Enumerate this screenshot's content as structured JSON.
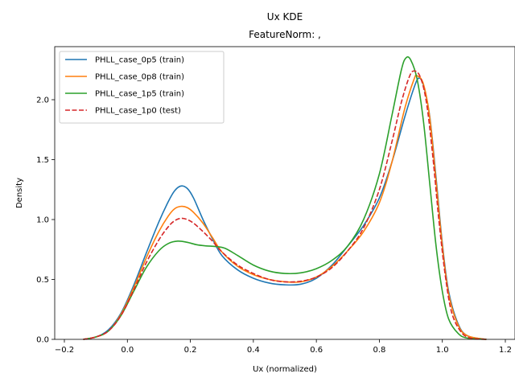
{
  "chart_data": {
    "type": "line",
    "title": "Ux KDE",
    "subtitle": "FeatureNorm: ,",
    "xlabel": "Ux (normalized)",
    "ylabel": "Density",
    "xlim": [
      -0.2,
      1.2
    ],
    "ylim": [
      0,
      2.5
    ],
    "xticks": [
      -0.2,
      0.0,
      0.2,
      0.4,
      0.6,
      0.8,
      1.0,
      1.2
    ],
    "xtick_labels": [
      "−0.2",
      "0.0",
      "0.2",
      "0.4",
      "0.6",
      "0.8",
      "1.0",
      "1.2"
    ],
    "yticks": [
      0.0,
      0.5,
      1.0,
      1.5,
      2.0
    ],
    "ytick_labels": [
      "0.0",
      "0.5",
      "1.0",
      "1.5",
      "2.0"
    ],
    "grid": false,
    "legend_position": "top-left",
    "series": [
      {
        "name": "PHLL_case_0p5 (train)",
        "color": "#1f77b4",
        "style": "solid",
        "points": [
          [
            -0.14,
            0.0
          ],
          [
            -0.1,
            0.02
          ],
          [
            -0.06,
            0.08
          ],
          [
            -0.02,
            0.22
          ],
          [
            0.02,
            0.45
          ],
          [
            0.06,
            0.72
          ],
          [
            0.1,
            0.98
          ],
          [
            0.13,
            1.15
          ],
          [
            0.15,
            1.24
          ],
          [
            0.17,
            1.28
          ],
          [
            0.19,
            1.26
          ],
          [
            0.21,
            1.18
          ],
          [
            0.24,
            1.0
          ],
          [
            0.27,
            0.84
          ],
          [
            0.3,
            0.7
          ],
          [
            0.35,
            0.58
          ],
          [
            0.4,
            0.51
          ],
          [
            0.45,
            0.47
          ],
          [
            0.5,
            0.455
          ],
          [
            0.55,
            0.46
          ],
          [
            0.6,
            0.51
          ],
          [
            0.65,
            0.62
          ],
          [
            0.7,
            0.78
          ],
          [
            0.75,
            0.95
          ],
          [
            0.8,
            1.18
          ],
          [
            0.84,
            1.48
          ],
          [
            0.88,
            1.85
          ],
          [
            0.91,
            2.1
          ],
          [
            0.925,
            2.18
          ],
          [
            0.94,
            2.12
          ],
          [
            0.96,
            1.86
          ],
          [
            0.98,
            1.35
          ],
          [
            1.0,
            0.8
          ],
          [
            1.02,
            0.4
          ],
          [
            1.05,
            0.13
          ],
          [
            1.08,
            0.03
          ],
          [
            1.14,
            0.0
          ]
        ]
      },
      {
        "name": "PHLL_case_0p8 (train)",
        "color": "#ff7f0e",
        "style": "solid",
        "points": [
          [
            -0.14,
            0.0
          ],
          [
            -0.1,
            0.02
          ],
          [
            -0.06,
            0.07
          ],
          [
            -0.02,
            0.21
          ],
          [
            0.02,
            0.43
          ],
          [
            0.06,
            0.68
          ],
          [
            0.1,
            0.9
          ],
          [
            0.13,
            1.03
          ],
          [
            0.15,
            1.09
          ],
          [
            0.17,
            1.11
          ],
          [
            0.19,
            1.1
          ],
          [
            0.21,
            1.06
          ],
          [
            0.24,
            0.97
          ],
          [
            0.27,
            0.85
          ],
          [
            0.3,
            0.73
          ],
          [
            0.35,
            0.61
          ],
          [
            0.4,
            0.54
          ],
          [
            0.45,
            0.5
          ],
          [
            0.5,
            0.48
          ],
          [
            0.55,
            0.48
          ],
          [
            0.6,
            0.52
          ],
          [
            0.65,
            0.61
          ],
          [
            0.7,
            0.74
          ],
          [
            0.75,
            0.9
          ],
          [
            0.8,
            1.14
          ],
          [
            0.84,
            1.48
          ],
          [
            0.88,
            1.92
          ],
          [
            0.91,
            2.17
          ],
          [
            0.92,
            2.2
          ],
          [
            0.94,
            2.13
          ],
          [
            0.96,
            1.85
          ],
          [
            0.98,
            1.32
          ],
          [
            1.0,
            0.78
          ],
          [
            1.02,
            0.38
          ],
          [
            1.05,
            0.12
          ],
          [
            1.08,
            0.03
          ],
          [
            1.14,
            0.0
          ]
        ]
      },
      {
        "name": "PHLL_case_1p5 (train)",
        "color": "#2ca02c",
        "style": "solid",
        "points": [
          [
            -0.14,
            0.0
          ],
          [
            -0.1,
            0.02
          ],
          [
            -0.06,
            0.07
          ],
          [
            -0.02,
            0.2
          ],
          [
            0.02,
            0.4
          ],
          [
            0.06,
            0.6
          ],
          [
            0.1,
            0.74
          ],
          [
            0.13,
            0.8
          ],
          [
            0.16,
            0.82
          ],
          [
            0.19,
            0.81
          ],
          [
            0.22,
            0.79
          ],
          [
            0.25,
            0.78
          ],
          [
            0.28,
            0.775
          ],
          [
            0.31,
            0.76
          ],
          [
            0.35,
            0.7
          ],
          [
            0.4,
            0.62
          ],
          [
            0.45,
            0.57
          ],
          [
            0.5,
            0.55
          ],
          [
            0.55,
            0.555
          ],
          [
            0.6,
            0.59
          ],
          [
            0.65,
            0.66
          ],
          [
            0.7,
            0.78
          ],
          [
            0.75,
            1.0
          ],
          [
            0.8,
            1.38
          ],
          [
            0.84,
            1.87
          ],
          [
            0.87,
            2.25
          ],
          [
            0.885,
            2.35
          ],
          [
            0.9,
            2.33
          ],
          [
            0.92,
            2.17
          ],
          [
            0.94,
            1.82
          ],
          [
            0.96,
            1.3
          ],
          [
            0.98,
            0.78
          ],
          [
            1.0,
            0.4
          ],
          [
            1.02,
            0.17
          ],
          [
            1.05,
            0.05
          ],
          [
            1.08,
            0.01
          ],
          [
            1.14,
            0.0
          ]
        ]
      },
      {
        "name": "PHLL_case_1p0 (test)",
        "color": "#d62728",
        "style": "dashed",
        "points": [
          [
            -0.14,
            0.0
          ],
          [
            -0.1,
            0.02
          ],
          [
            -0.06,
            0.07
          ],
          [
            -0.02,
            0.2
          ],
          [
            0.02,
            0.41
          ],
          [
            0.06,
            0.64
          ],
          [
            0.1,
            0.83
          ],
          [
            0.13,
            0.94
          ],
          [
            0.15,
            0.99
          ],
          [
            0.17,
            1.01
          ],
          [
            0.19,
            1.0
          ],
          [
            0.21,
            0.97
          ],
          [
            0.24,
            0.9
          ],
          [
            0.27,
            0.82
          ],
          [
            0.3,
            0.73
          ],
          [
            0.35,
            0.62
          ],
          [
            0.4,
            0.55
          ],
          [
            0.45,
            0.5
          ],
          [
            0.5,
            0.48
          ],
          [
            0.55,
            0.485
          ],
          [
            0.6,
            0.52
          ],
          [
            0.65,
            0.6
          ],
          [
            0.7,
            0.74
          ],
          [
            0.75,
            0.93
          ],
          [
            0.8,
            1.25
          ],
          [
            0.84,
            1.65
          ],
          [
            0.87,
            1.98
          ],
          [
            0.895,
            2.19
          ],
          [
            0.91,
            2.24
          ],
          [
            0.93,
            2.19
          ],
          [
            0.95,
            1.97
          ],
          [
            0.97,
            1.52
          ],
          [
            0.99,
            0.97
          ],
          [
            1.01,
            0.52
          ],
          [
            1.03,
            0.22
          ],
          [
            1.06,
            0.06
          ],
          [
            1.09,
            0.01
          ],
          [
            1.14,
            0.0
          ]
        ]
      }
    ]
  }
}
